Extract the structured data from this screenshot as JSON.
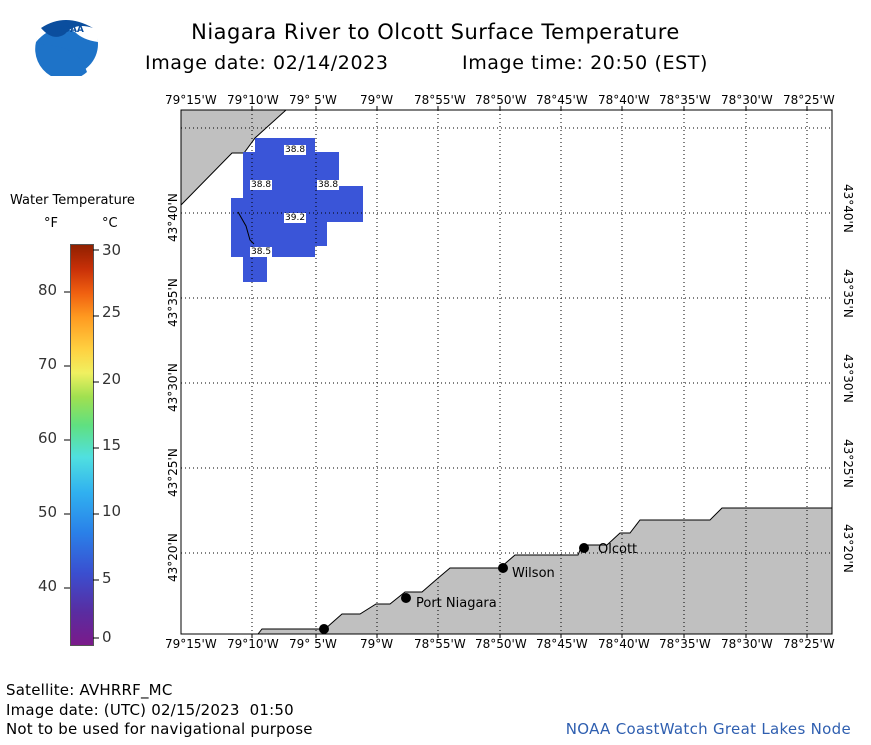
{
  "header": {
    "title": "Niagara River to Olcott Surface Temperature",
    "image_date": "Image date: 02/14/2023",
    "image_time": "Image time: 20:50 (EST)"
  },
  "logo": {
    "text": "NOAA"
  },
  "legend": {
    "title": "Water Temperature",
    "unit_f": "°F",
    "unit_c": "°C",
    "f_ticks": [
      "80",
      "70",
      "60",
      "50",
      "40"
    ],
    "c_ticks": [
      "30",
      "25",
      "20",
      "15",
      "10",
      "5",
      "0"
    ]
  },
  "map": {
    "top_axis": [
      "79°15'W",
      "79°10'W",
      "79° 5'W",
      "79°W",
      "78°55'W",
      "78°50'W",
      "78°45'W",
      "78°40'W",
      "78°35'W",
      "78°30'W",
      "78°25'W"
    ],
    "bottom_axis": [
      "79°15'W",
      "79°10'W",
      "79° 5'W",
      "79°W",
      "78°55'W",
      "78°50'W",
      "78°45'W",
      "78°40'W",
      "78°35'W",
      "78°30'W",
      "78°25'W"
    ],
    "lat_labels": [
      "43°40'N",
      "43°35'N",
      "43°30'N",
      "43°25'N",
      "43°20'N"
    ],
    "cities": [
      "Olcott",
      "Wilson",
      "Port Niagara"
    ],
    "temp_values": [
      "38.8",
      "38.8",
      "38.8",
      "39.2",
      "38.5"
    ]
  },
  "footer": {
    "satellite": "Satellite: AVHRRF_MC",
    "utc_date": "Image date: (UTC) 02/15/2023  01:50",
    "disclaimer": "Not to be used for navigational purpose",
    "credit": "NOAA CoastWatch Great Lakes Node"
  },
  "colors": {
    "land": "#c0c0c0",
    "water_sst": "#3a55d8",
    "grid": "#000000",
    "credit": "#2f5fb0"
  }
}
